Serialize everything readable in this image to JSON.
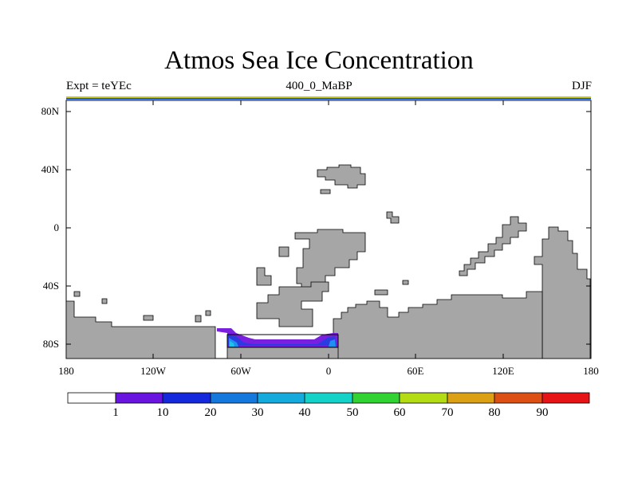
{
  "title": "Atmos Sea Ice Concentration",
  "subtitle_left": "Expt = teYEc",
  "subtitle_center": "400_0_MaBP",
  "subtitle_right": "DJF",
  "y_axis_labels": [
    "80N",
    "40N",
    "0",
    "40S",
    "80S"
  ],
  "x_axis_labels": [
    "180",
    "120W",
    "60W",
    "0",
    "60E",
    "120E",
    "180"
  ],
  "colorbar": {
    "labels": [
      "1",
      "10",
      "20",
      "30",
      "40",
      "50",
      "60",
      "70",
      "80",
      "90"
    ],
    "colors": [
      "#ffffff",
      "#6a14e0",
      "#1428dc",
      "#1478dc",
      "#14aadc",
      "#14d2c8",
      "#32d232",
      "#b4dc14",
      "#dca014",
      "#dc5014",
      "#e61414"
    ]
  },
  "colors": {
    "land": "#a6a6a6",
    "outline": "#000000",
    "ice_low": "#7a1fe0",
    "ice_mid": "#2a3ce0",
    "ice_high": "#1e90ee",
    "ice_highest": "#20c0e8"
  }
}
